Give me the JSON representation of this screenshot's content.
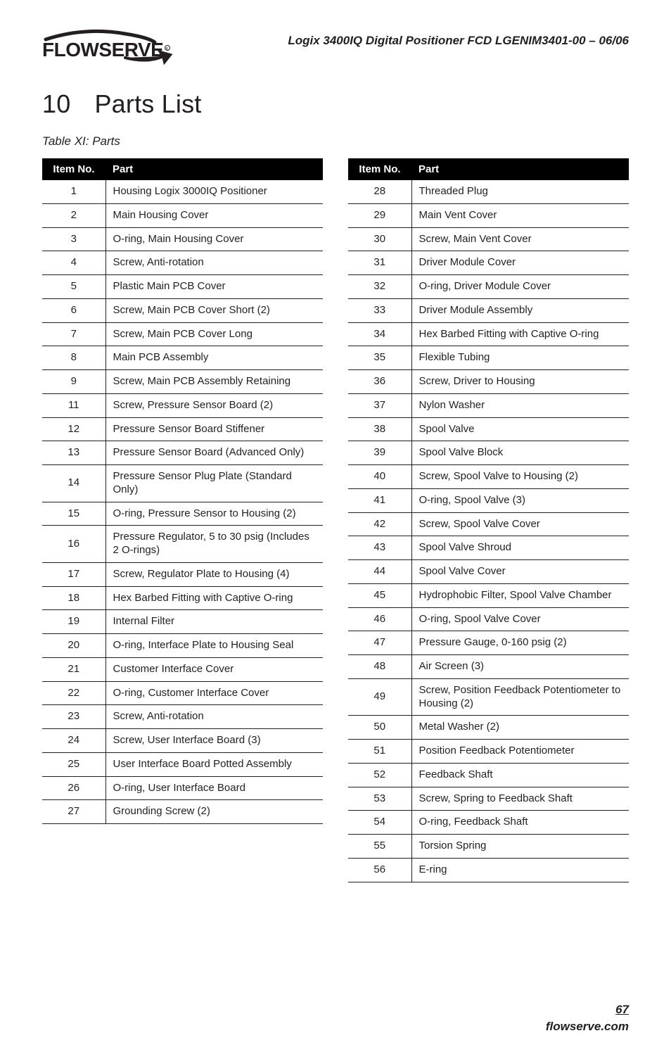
{
  "header": {
    "doc_title": "Logix 3400IQ Digital Positioner    FCD LGENIM3401-00 – 06/06"
  },
  "section": {
    "number": "10",
    "title": "Parts List"
  },
  "table_caption": "Table XI: Parts",
  "columns": {
    "no": "Item No.",
    "part": "Part"
  },
  "left_rows": [
    {
      "no": "1",
      "part": "Housing Logix 3000IQ Positioner"
    },
    {
      "no": "2",
      "part": "Main Housing Cover"
    },
    {
      "no": "3",
      "part": "O-ring, Main Housing Cover"
    },
    {
      "no": "4",
      "part": "Screw, Anti-rotation"
    },
    {
      "no": "5",
      "part": "Plastic Main PCB Cover"
    },
    {
      "no": "6",
      "part": "Screw, Main PCB Cover Short (2)"
    },
    {
      "no": "7",
      "part": "Screw, Main PCB Cover Long"
    },
    {
      "no": "8",
      "part": "Main PCB Assembly"
    },
    {
      "no": "9",
      "part": "Screw, Main PCB Assembly Retaining"
    },
    {
      "no": "11",
      "part": "Screw, Pressure Sensor Board (2)"
    },
    {
      "no": "12",
      "part": "Pressure Sensor Board Stiffener"
    },
    {
      "no": "13",
      "part": "Pressure Sensor Board (Advanced Only)"
    },
    {
      "no": "14",
      "part": "Pressure Sensor Plug Plate (Standard Only)"
    },
    {
      "no": "15",
      "part": "O-ring, Pressure Sensor to Housing (2)"
    },
    {
      "no": "16",
      "part": "Pressure Regulator, 5 to 30 psig (Includes 2 O-rings)"
    },
    {
      "no": "17",
      "part": "Screw, Regulator Plate to Housing (4)"
    },
    {
      "no": "18",
      "part": "Hex Barbed Fitting with Captive O-ring"
    },
    {
      "no": "19",
      "part": "Internal Filter"
    },
    {
      "no": "20",
      "part": "O-ring, Interface Plate to Housing Seal"
    },
    {
      "no": "21",
      "part": "Customer Interface Cover"
    },
    {
      "no": "22",
      "part": "O-ring, Customer Interface Cover"
    },
    {
      "no": "23",
      "part": "Screw, Anti-rotation"
    },
    {
      "no": "24",
      "part": "Screw, User Interface Board (3)"
    },
    {
      "no": "25",
      "part": "User Interface Board Potted Assembly"
    },
    {
      "no": "26",
      "part": "O-ring, User Interface Board"
    },
    {
      "no": "27",
      "part": "Grounding Screw (2)"
    }
  ],
  "right_rows": [
    {
      "no": "28",
      "part": "Threaded Plug"
    },
    {
      "no": "29",
      "part": "Main Vent Cover"
    },
    {
      "no": "30",
      "part": "Screw, Main Vent Cover"
    },
    {
      "no": "31",
      "part": "Driver Module Cover"
    },
    {
      "no": "32",
      "part": "O-ring, Driver Module Cover"
    },
    {
      "no": "33",
      "part": "Driver Module Assembly"
    },
    {
      "no": "34",
      "part": "Hex Barbed Fitting with Captive O-ring"
    },
    {
      "no": "35",
      "part": "Flexible Tubing"
    },
    {
      "no": "36",
      "part": "Screw, Driver to Housing"
    },
    {
      "no": "37",
      "part": "Nylon Washer"
    },
    {
      "no": "38",
      "part": "Spool Valve"
    },
    {
      "no": "39",
      "part": "Spool Valve Block"
    },
    {
      "no": "40",
      "part": "Screw, Spool Valve to Housing (2)"
    },
    {
      "no": "41",
      "part": "O-ring, Spool Valve (3)"
    },
    {
      "no": "42",
      "part": "Screw, Spool Valve Cover"
    },
    {
      "no": "43",
      "part": "Spool Valve Shroud"
    },
    {
      "no": "44",
      "part": "Spool Valve Cover"
    },
    {
      "no": "45",
      "part": "Hydrophobic Filter, Spool Valve Chamber"
    },
    {
      "no": "46",
      "part": "O-ring, Spool Valve Cover"
    },
    {
      "no": "47",
      "part": "Pressure Gauge, 0-160 psig (2)"
    },
    {
      "no": "48",
      "part": "Air Screen (3)"
    },
    {
      "no": "49",
      "part": "Screw, Position Feedback Potentiometer to Housing (2)"
    },
    {
      "no": "50",
      "part": "Metal Washer (2)"
    },
    {
      "no": "51",
      "part": "Position Feedback Potentiometer"
    },
    {
      "no": "52",
      "part": "Feedback Shaft"
    },
    {
      "no": "53",
      "part": "Screw, Spring to Feedback Shaft"
    },
    {
      "no": "54",
      "part": "O-ring, Feedback Shaft"
    },
    {
      "no": "55",
      "part": "Torsion Spring"
    },
    {
      "no": "56",
      "part": "E-ring"
    }
  ],
  "footer": {
    "page_no": "67",
    "brand": "flowserve.com"
  }
}
